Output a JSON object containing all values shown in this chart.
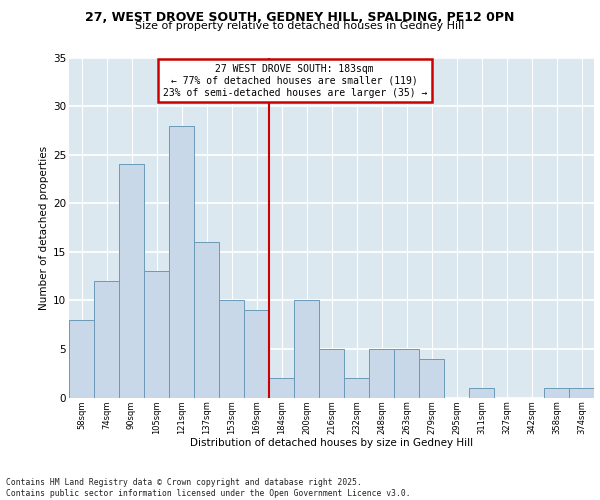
{
  "title1": "27, WEST DROVE SOUTH, GEDNEY HILL, SPALDING, PE12 0PN",
  "title2": "Size of property relative to detached houses in Gedney Hill",
  "xlabel": "Distribution of detached houses by size in Gedney Hill",
  "ylabel": "Number of detached properties",
  "footnote": "Contains HM Land Registry data © Crown copyright and database right 2025.\nContains public sector information licensed under the Open Government Licence v3.0.",
  "bin_labels": [
    "58sqm",
    "74sqm",
    "90sqm",
    "105sqm",
    "121sqm",
    "137sqm",
    "153sqm",
    "169sqm",
    "184sqm",
    "200sqm",
    "216sqm",
    "232sqm",
    "248sqm",
    "263sqm",
    "279sqm",
    "295sqm",
    "311sqm",
    "327sqm",
    "342sqm",
    "358sqm",
    "374sqm"
  ],
  "bar_heights": [
    8,
    12,
    24,
    13,
    28,
    16,
    10,
    9,
    2,
    10,
    5,
    2,
    5,
    5,
    4,
    0,
    1,
    0,
    0,
    1,
    1
  ],
  "bar_color": "#c8d8e8",
  "bar_edge_color": "#6a9ab8",
  "bg_color": "#dce8f0",
  "grid_color": "#ffffff",
  "annotation_title": "27 WEST DROVE SOUTH: 183sqm",
  "annotation_line1": "← 77% of detached houses are smaller (119)",
  "annotation_line2": "23% of semi-detached houses are larger (35) →",
  "red_line_color": "#cc0000",
  "annotation_box_color": "#ffffff",
  "annotation_box_edge": "#cc0000",
  "fig_bg_color": "#ffffff",
  "ylim": [
    0,
    35
  ],
  "yticks": [
    0,
    5,
    10,
    15,
    20,
    25,
    30,
    35
  ]
}
